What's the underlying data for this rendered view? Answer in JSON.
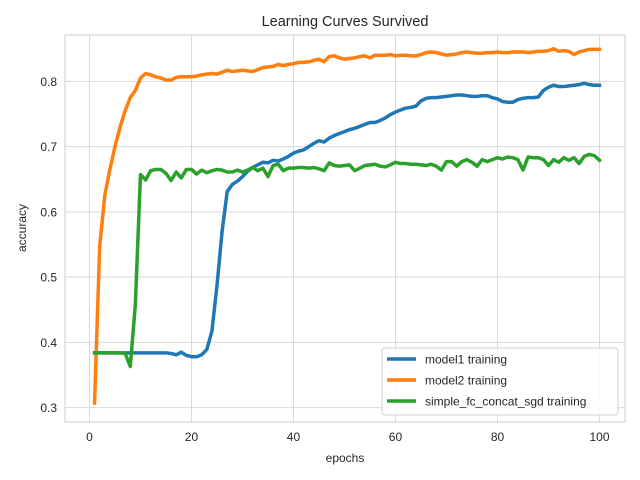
{
  "chart_data": {
    "type": "line",
    "title": "Learning Curves Survived",
    "xlabel": "epochs",
    "ylabel": "accuracy",
    "xlim": [
      -4.8,
      105
    ],
    "ylim": [
      0.278,
      0.871
    ],
    "xticks": [
      0,
      20,
      40,
      60,
      80,
      100
    ],
    "xtick_labels": [
      "0",
      "20",
      "40",
      "60",
      "80",
      "100"
    ],
    "yticks": [
      0.3,
      0.4,
      0.5,
      0.6,
      0.7,
      0.8
    ],
    "ytick_labels": [
      "0.3",
      "0.4",
      "0.5",
      "0.6",
      "0.7",
      "0.8"
    ],
    "grid": true,
    "legend_position": "lower-right",
    "x": [
      1,
      2,
      3,
      4,
      5,
      6,
      7,
      8,
      9,
      10,
      11,
      12,
      13,
      14,
      15,
      16,
      17,
      18,
      19,
      20,
      21,
      22,
      23,
      24,
      25,
      26,
      27,
      28,
      29,
      30,
      31,
      32,
      33,
      34,
      35,
      36,
      37,
      38,
      39,
      40,
      41,
      42,
      43,
      44,
      45,
      46,
      47,
      48,
      49,
      50,
      51,
      52,
      53,
      54,
      55,
      56,
      57,
      58,
      59,
      60,
      61,
      62,
      63,
      64,
      65,
      66,
      67,
      68,
      69,
      70,
      71,
      72,
      73,
      74,
      75,
      76,
      77,
      78,
      79,
      80,
      81,
      82,
      83,
      84,
      85,
      86,
      87,
      88,
      89,
      90,
      91,
      92,
      93,
      94,
      95,
      96,
      97,
      98,
      99,
      100
    ],
    "series": [
      {
        "name": "model1 training",
        "color": "#1f77b4",
        "values": [
          0.384,
          0.384,
          0.384,
          0.384,
          0.384,
          0.384,
          0.384,
          0.384,
          0.384,
          0.384,
          0.384,
          0.384,
          0.384,
          0.384,
          0.384,
          0.383,
          0.381,
          0.385,
          0.38,
          0.378,
          0.378,
          0.381,
          0.389,
          0.417,
          0.487,
          0.57,
          0.631,
          0.642,
          0.647,
          0.654,
          0.662,
          0.668,
          0.672,
          0.676,
          0.675,
          0.679,
          0.678,
          0.681,
          0.685,
          0.69,
          0.693,
          0.695,
          0.7,
          0.705,
          0.709,
          0.707,
          0.713,
          0.717,
          0.72,
          0.723,
          0.726,
          0.728,
          0.731,
          0.734,
          0.737,
          0.737,
          0.74,
          0.744,
          0.749,
          0.753,
          0.756,
          0.759,
          0.76,
          0.762,
          0.77,
          0.774,
          0.775,
          0.775,
          0.776,
          0.777,
          0.778,
          0.779,
          0.779,
          0.778,
          0.777,
          0.777,
          0.778,
          0.778,
          0.775,
          0.773,
          0.769,
          0.768,
          0.768,
          0.772,
          0.774,
          0.775,
          0.775,
          0.776,
          0.786,
          0.791,
          0.794,
          0.792,
          0.792,
          0.793,
          0.794,
          0.795,
          0.797,
          0.795,
          0.794,
          0.794
        ]
      },
      {
        "name": "model2 training",
        "color": "#ff7f0e",
        "values": [
          0.307,
          0.547,
          0.625,
          0.665,
          0.7,
          0.73,
          0.755,
          0.775,
          0.786,
          0.805,
          0.812,
          0.81,
          0.807,
          0.805,
          0.802,
          0.802,
          0.806,
          0.807,
          0.807,
          0.807,
          0.808,
          0.81,
          0.811,
          0.812,
          0.811,
          0.814,
          0.817,
          0.815,
          0.816,
          0.817,
          0.816,
          0.815,
          0.818,
          0.821,
          0.822,
          0.823,
          0.826,
          0.824,
          0.826,
          0.827,
          0.829,
          0.829,
          0.83,
          0.832,
          0.834,
          0.83,
          0.838,
          0.839,
          0.836,
          0.834,
          0.835,
          0.836,
          0.838,
          0.839,
          0.836,
          0.84,
          0.84,
          0.84,
          0.841,
          0.839,
          0.84,
          0.84,
          0.839,
          0.839,
          0.841,
          0.844,
          0.845,
          0.844,
          0.842,
          0.84,
          0.841,
          0.842,
          0.844,
          0.845,
          0.844,
          0.843,
          0.843,
          0.844,
          0.844,
          0.845,
          0.844,
          0.844,
          0.845,
          0.845,
          0.845,
          0.844,
          0.845,
          0.846,
          0.846,
          0.847,
          0.85,
          0.846,
          0.847,
          0.846,
          0.841,
          0.845,
          0.847,
          0.849,
          0.849,
          0.849
        ]
      },
      {
        "name": "simple_fc_concat_sgd training",
        "color": "#2ca02c",
        "values": [
          0.384,
          0.384,
          0.384,
          0.384,
          0.384,
          0.384,
          0.383,
          0.363,
          0.459,
          0.657,
          0.649,
          0.663,
          0.665,
          0.665,
          0.659,
          0.648,
          0.661,
          0.652,
          0.665,
          0.665,
          0.658,
          0.664,
          0.66,
          0.663,
          0.665,
          0.664,
          0.661,
          0.661,
          0.664,
          0.661,
          0.664,
          0.668,
          0.663,
          0.667,
          0.654,
          0.671,
          0.673,
          0.663,
          0.667,
          0.667,
          0.668,
          0.668,
          0.667,
          0.668,
          0.666,
          0.663,
          0.675,
          0.671,
          0.67,
          0.671,
          0.672,
          0.663,
          0.667,
          0.671,
          0.672,
          0.673,
          0.67,
          0.669,
          0.672,
          0.676,
          0.674,
          0.674,
          0.673,
          0.673,
          0.672,
          0.671,
          0.673,
          0.67,
          0.664,
          0.677,
          0.677,
          0.67,
          0.677,
          0.68,
          0.676,
          0.67,
          0.68,
          0.677,
          0.68,
          0.683,
          0.681,
          0.684,
          0.683,
          0.68,
          0.664,
          0.684,
          0.683,
          0.683,
          0.68,
          0.671,
          0.68,
          0.676,
          0.683,
          0.679,
          0.683,
          0.674,
          0.685,
          0.688,
          0.686,
          0.679
        ]
      }
    ]
  }
}
